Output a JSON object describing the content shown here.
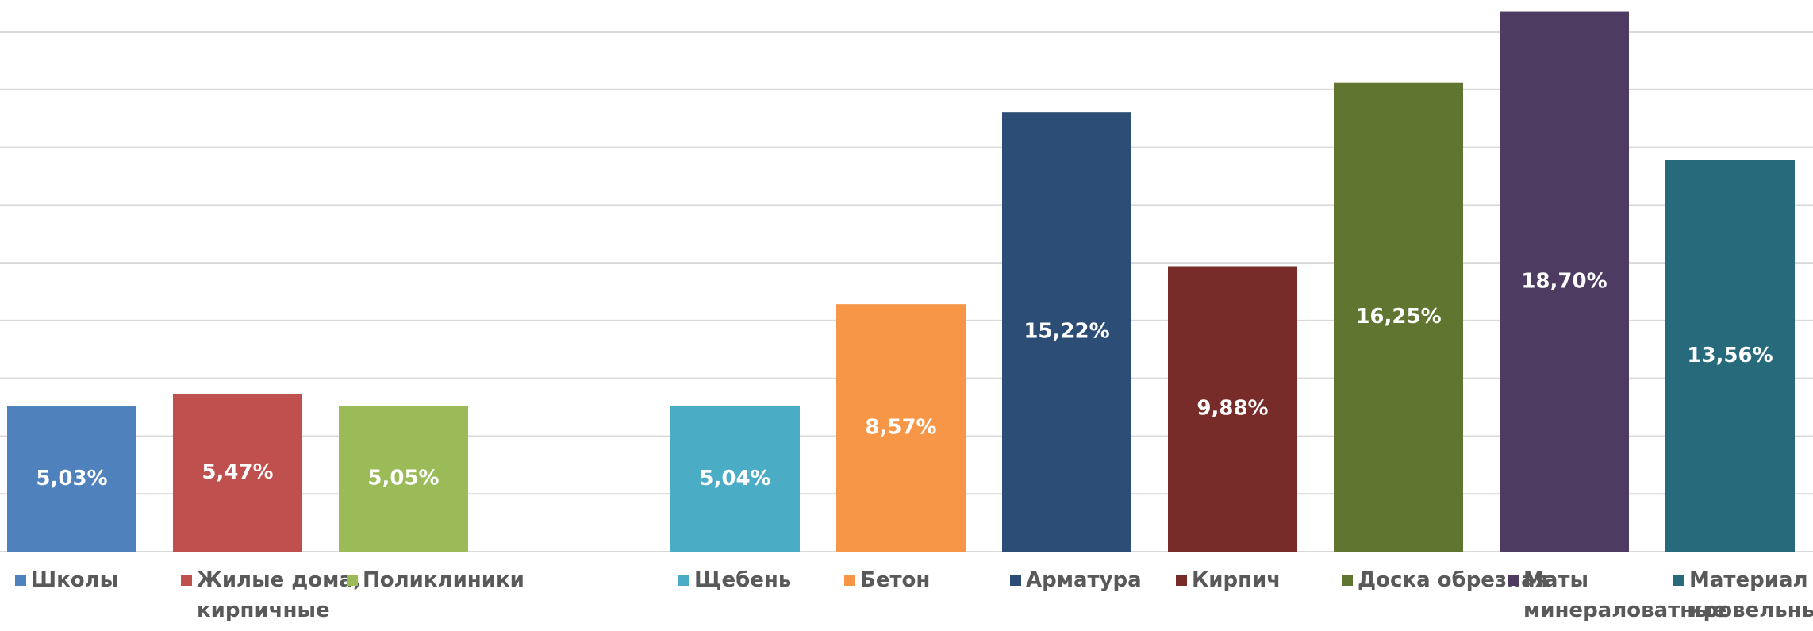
{
  "chart_data": {
    "type": "bar",
    "categories": [
      "Школы",
      "Жилые дома,\nкирпичные",
      "Поликлиники",
      null,
      "Щебень",
      "Бетон",
      "Арматура",
      "Кирпич",
      "Доска обрезная",
      "Маты\nминераловатные",
      "Материал\nкровельный"
    ],
    "values": [
      5.03,
      5.47,
      5.05,
      null,
      5.04,
      8.57,
      15.22,
      9.88,
      16.25,
      18.7,
      13.56
    ],
    "value_labels": [
      "5,03%",
      "5,47%",
      "5,05%",
      null,
      "5,04%",
      "8,57%",
      "15,22%",
      "9,88%",
      "16,25%",
      "18,70%",
      "13,56%"
    ],
    "colors": [
      "#4F81BD",
      "#C0504D",
      "#9BBB59",
      null,
      "#4BACC6",
      "#F79646",
      "#2C4D75",
      "#772C2A",
      "#5F7530",
      "#4D3B62",
      "#276A7C"
    ],
    "ylim": [
      0,
      19.1
    ],
    "yticks": [
      0,
      2,
      4,
      6,
      8,
      10,
      12,
      14,
      16,
      18
    ],
    "grid": true
  }
}
